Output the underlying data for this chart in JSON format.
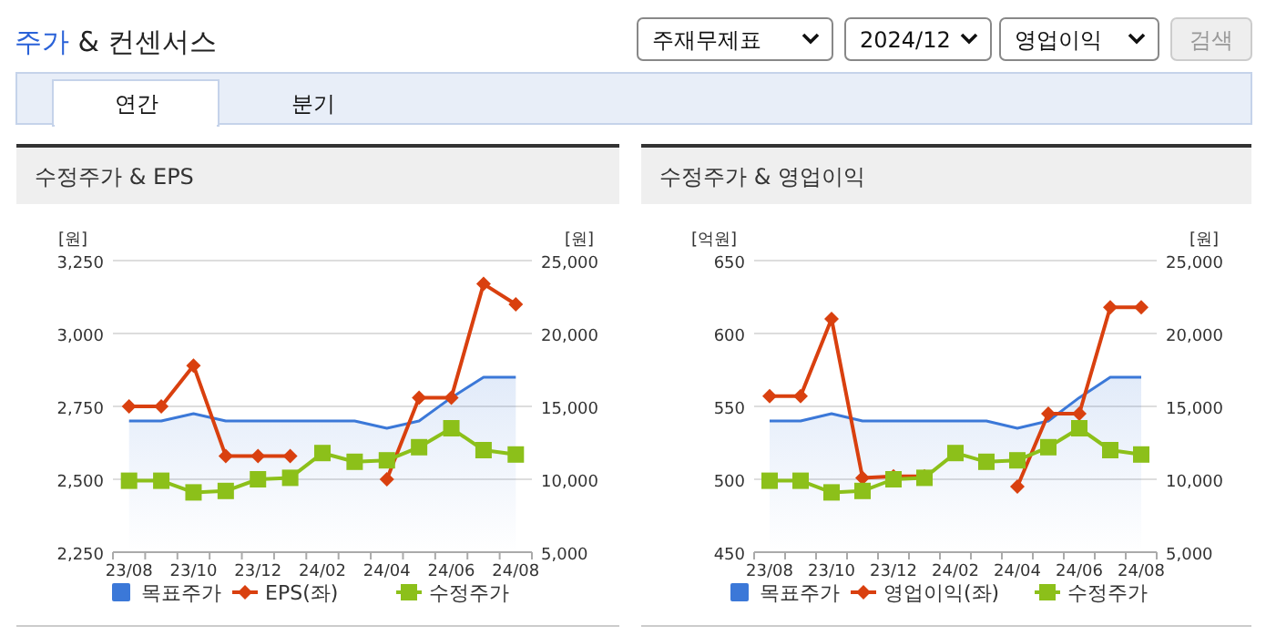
{
  "chart_data": [
    {
      "type": "other",
      "title": "주가 & 컨센서스",
      "annotations": [
        "주재무제표",
        "2024/12",
        "영업이익",
        "검색",
        "연간",
        "분기"
      ]
    },
    {
      "type": "line",
      "title": "수정주가 & EPS",
      "ylabel": "[원]",
      "y2label": "[원]",
      "categories": [
        "23/08",
        null,
        "23/10",
        null,
        "23/12",
        null,
        "24/02",
        null,
        "24/04",
        null,
        "24/06",
        null,
        "24/08"
      ],
      "series": [
        {
          "name": "목표주가",
          "type": "area",
          "axis": "y2",
          "color": "#3b78d8",
          "values": [
            14000,
            14000,
            14500,
            14000,
            14000,
            14000,
            14000,
            14000,
            13500,
            14000,
            15600,
            17000,
            17000
          ]
        },
        {
          "name": "EPS(좌)",
          "type": "line",
          "marker": "diamond",
          "color": "#d9400f",
          "values": [
            2750,
            2750,
            2890,
            2580,
            2580,
            2580,
            null,
            null,
            2500,
            2780,
            2780,
            3170,
            3100
          ]
        },
        {
          "name": "수정주가",
          "type": "line",
          "marker": "square",
          "axis": "y2",
          "color": "#8cc01a",
          "values": [
            9900,
            9900,
            9100,
            9200,
            10000,
            10100,
            11800,
            11200,
            11300,
            12200,
            13500,
            12000,
            11700
          ]
        }
      ],
      "ylim": [
        2250,
        3250
      ],
      "yticks": [
        {
          "value": 2250,
          "label": "2,250"
        },
        {
          "value": 2500,
          "label": "2,500"
        },
        {
          "value": 2750,
          "label": "2,750"
        },
        {
          "value": 3000,
          "label": "3,000"
        },
        {
          "value": 3250,
          "label": "3,250"
        }
      ],
      "y2lim": [
        5000,
        25000
      ],
      "y2ticks": [
        {
          "value": 5000,
          "label": "5,000"
        },
        {
          "value": 10000,
          "label": "10,000"
        },
        {
          "value": 15000,
          "label": "15,000"
        },
        {
          "value": 20000,
          "label": "20,000"
        },
        {
          "value": 25000,
          "label": "25,000"
        }
      ],
      "grid": "y",
      "legend": "bottom"
    },
    {
      "type": "line",
      "title": "수정주가 & 영업이익",
      "ylabel": "[억원]",
      "y2label": "[원]",
      "categories": [
        "23/08",
        null,
        "23/10",
        null,
        "23/12",
        null,
        "24/02",
        null,
        "24/04",
        null,
        "24/06",
        null,
        "24/08"
      ],
      "series": [
        {
          "name": "목표주가",
          "type": "area",
          "axis": "y2",
          "color": "#3b78d8",
          "values": [
            14000,
            14000,
            14500,
            14000,
            14000,
            14000,
            14000,
            14000,
            13500,
            14000,
            15600,
            17000,
            17000
          ]
        },
        {
          "name": "영업이익(좌)",
          "type": "line",
          "marker": "diamond",
          "color": "#d9400f",
          "values": [
            557,
            557,
            610,
            501,
            502,
            502,
            null,
            null,
            495,
            545,
            545,
            618,
            618
          ]
        },
        {
          "name": "수정주가",
          "type": "line",
          "marker": "square",
          "axis": "y2",
          "color": "#8cc01a",
          "values": [
            9900,
            9900,
            9100,
            9200,
            10000,
            10100,
            11800,
            11200,
            11300,
            12200,
            13500,
            12000,
            11700
          ]
        }
      ],
      "ylim": [
        450,
        650
      ],
      "yticks": [
        450,
        500,
        550,
        600,
        650
      ],
      "y2lim": [
        5000,
        25000
      ],
      "y2ticks": [
        {
          "value": 5000,
          "label": "5,000"
        },
        {
          "value": 10000,
          "label": "10,000"
        },
        {
          "value": 15000,
          "label": "15,000"
        },
        {
          "value": 20000,
          "label": "20,000"
        },
        {
          "value": 25000,
          "label": "25,000"
        }
      ],
      "grid": "y",
      "legend": "bottom"
    }
  ]
}
